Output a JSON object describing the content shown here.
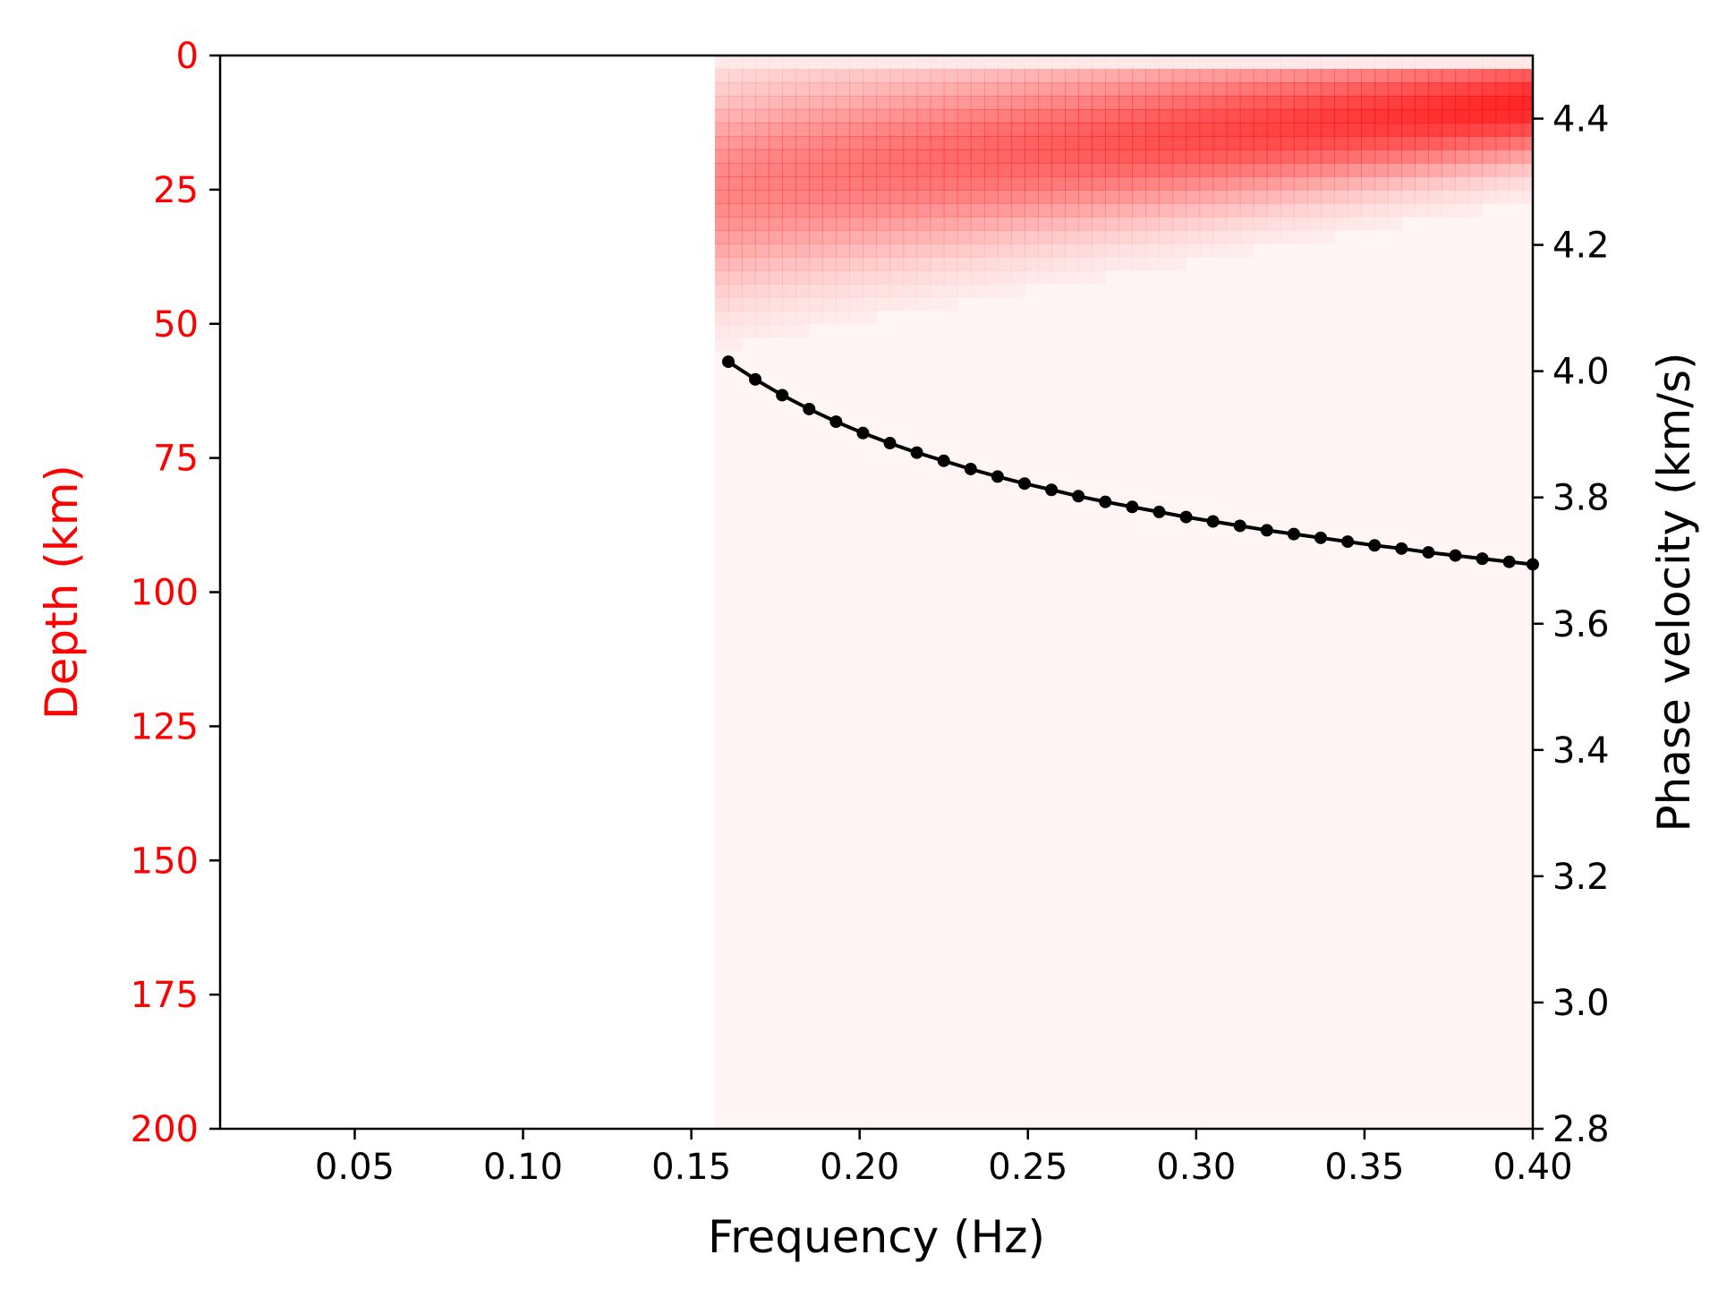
{
  "chart_data": {
    "type": "heatmap",
    "xlabel": "Frequency (Hz)",
    "ylabel_left": "Depth (km)",
    "ylabel_right": "Phase velocity (km/s)",
    "xlim": [
      0.01,
      0.4
    ],
    "ylim_left": [
      200,
      0
    ],
    "ylim_right": [
      2.8,
      4.5
    ],
    "x_ticks": [
      "0.05",
      "0.10",
      "0.15",
      "0.20",
      "0.25",
      "0.30",
      "0.35",
      "0.40"
    ],
    "x_tick_values": [
      0.05,
      0.1,
      0.15,
      0.2,
      0.25,
      0.3,
      0.35,
      0.4
    ],
    "y_left_ticks": [
      "0",
      "25",
      "50",
      "75",
      "100",
      "125",
      "150",
      "175",
      "200"
    ],
    "y_left_tick_values": [
      0,
      25,
      50,
      75,
      100,
      125,
      150,
      175,
      200
    ],
    "y_right_ticks": [
      "2.8",
      "3.0",
      "3.2",
      "3.4",
      "3.6",
      "3.8",
      "4.0",
      "4.2",
      "4.4"
    ],
    "y_right_tick_values": [
      2.8,
      3.0,
      3.2,
      3.4,
      3.6,
      3.8,
      4.0,
      4.2,
      4.4
    ],
    "grid": false,
    "colors": {
      "left_axis": "#ff0000",
      "heat": "#ff0000",
      "heat_background": "#fff5f5",
      "curve": "#000000",
      "frame": "#000000"
    },
    "heatmap": {
      "freq_start": 0.157,
      "freq_end": 0.4,
      "freq_step": 0.004,
      "depth_step": 2.5,
      "depth_max": 200,
      "peak_depth_at_start": 25,
      "peak_depth_at_end": 9,
      "spread_at_start": 13,
      "spread_at_end": 7,
      "max_intensity_at_start": 0.45,
      "max_intensity_at_end": 0.85
    },
    "series": [
      {
        "x": [
          0.161,
          0.169,
          0.177,
          0.185,
          0.193,
          0.201,
          0.209,
          0.217,
          0.225,
          0.233,
          0.241,
          0.249,
          0.257,
          0.265,
          0.273,
          0.281,
          0.289,
          0.297,
          0.305,
          0.313,
          0.321,
          0.329,
          0.337,
          0.345,
          0.353,
          0.361,
          0.369,
          0.377,
          0.385,
          0.393,
          0.4
        ],
        "y": [
          4.015,
          3.987,
          3.962,
          3.94,
          3.92,
          3.902,
          3.886,
          3.871,
          3.858,
          3.845,
          3.833,
          3.822,
          3.812,
          3.802,
          3.793,
          3.785,
          3.777,
          3.769,
          3.762,
          3.755,
          3.748,
          3.742,
          3.736,
          3.73,
          3.724,
          3.719,
          3.713,
          3.708,
          3.703,
          3.698,
          3.694
        ]
      }
    ]
  }
}
